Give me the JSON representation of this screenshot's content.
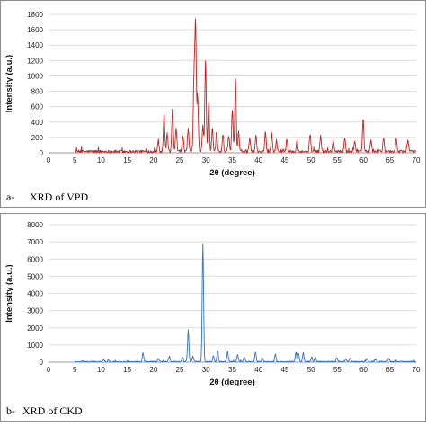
{
  "panels": [
    {
      "caption_prefix": "a-",
      "caption": "XRD of VPD",
      "chart_data": {
        "type": "line",
        "xlabel": "2θ (degree)",
        "ylabel": "Intensity (a.u.)",
        "xlim": [
          0,
          70
        ],
        "ylim": [
          0,
          1800
        ],
        "xticks": [
          0,
          5,
          10,
          15,
          20,
          25,
          30,
          35,
          40,
          45,
          50,
          55,
          60,
          65,
          70
        ],
        "yticks": [
          0,
          200,
          400,
          600,
          800,
          1000,
          1200,
          1400,
          1600,
          1800
        ],
        "grid": "horizontal",
        "color": "#c8201e",
        "x_range": [
          5,
          70
        ],
        "noise_level": 35,
        "peaks": [
          {
            "x": 20.9,
            "y": 150
          },
          {
            "x": 22.0,
            "y": 480
          },
          {
            "x": 22.6,
            "y": 230
          },
          {
            "x": 23.6,
            "y": 560
          },
          {
            "x": 24.3,
            "y": 300
          },
          {
            "x": 25.6,
            "y": 200
          },
          {
            "x": 26.6,
            "y": 290
          },
          {
            "x": 27.7,
            "y": 1000
          },
          {
            "x": 28.0,
            "y": 1680
          },
          {
            "x": 28.4,
            "y": 700
          },
          {
            "x": 29.4,
            "y": 350
          },
          {
            "x": 29.9,
            "y": 1180
          },
          {
            "x": 30.5,
            "y": 640
          },
          {
            "x": 31.2,
            "y": 300
          },
          {
            "x": 32.0,
            "y": 250
          },
          {
            "x": 33.2,
            "y": 220
          },
          {
            "x": 34.3,
            "y": 200
          },
          {
            "x": 35.0,
            "y": 540
          },
          {
            "x": 35.6,
            "y": 950
          },
          {
            "x": 36.2,
            "y": 250
          },
          {
            "x": 38.3,
            "y": 180
          },
          {
            "x": 39.5,
            "y": 200
          },
          {
            "x": 41.3,
            "y": 260
          },
          {
            "x": 42.5,
            "y": 230
          },
          {
            "x": 43.4,
            "y": 150
          },
          {
            "x": 45.4,
            "y": 150
          },
          {
            "x": 47.3,
            "y": 150
          },
          {
            "x": 49.8,
            "y": 220
          },
          {
            "x": 51.8,
            "y": 200
          },
          {
            "x": 54.2,
            "y": 150
          },
          {
            "x": 56.4,
            "y": 180
          },
          {
            "x": 58.3,
            "y": 140
          },
          {
            "x": 59.9,
            "y": 420
          },
          {
            "x": 61.4,
            "y": 150
          },
          {
            "x": 63.8,
            "y": 180
          },
          {
            "x": 66.2,
            "y": 160
          },
          {
            "x": 68.4,
            "y": 150
          }
        ]
      }
    },
    {
      "caption_prefix": "b-",
      "caption": "XRD of CKD",
      "chart_data": {
        "type": "line",
        "xlabel": "2θ (degree)",
        "ylabel": "Intensity (a.u.)",
        "xlim": [
          0,
          70
        ],
        "ylim": [
          0,
          8000
        ],
        "xticks": [
          0,
          5,
          10,
          15,
          20,
          25,
          30,
          35,
          40,
          45,
          50,
          55,
          60,
          65,
          70
        ],
        "yticks": [
          0,
          1000,
          2000,
          3000,
          4000,
          5000,
          6000,
          7000,
          8000
        ],
        "grid": "horizontal",
        "color": "#2f72d1",
        "x_range": [
          5,
          70
        ],
        "noise_level": 60,
        "peaks": [
          {
            "x": 10.5,
            "y": 130
          },
          {
            "x": 11.4,
            "y": 110
          },
          {
            "x": 18.0,
            "y": 500
          },
          {
            "x": 20.9,
            "y": 180
          },
          {
            "x": 23.0,
            "y": 320
          },
          {
            "x": 25.5,
            "y": 250
          },
          {
            "x": 26.6,
            "y": 1850
          },
          {
            "x": 27.5,
            "y": 300
          },
          {
            "x": 29.4,
            "y": 6850
          },
          {
            "x": 31.4,
            "y": 350
          },
          {
            "x": 32.2,
            "y": 650
          },
          {
            "x": 34.1,
            "y": 600
          },
          {
            "x": 36.0,
            "y": 420
          },
          {
            "x": 37.3,
            "y": 250
          },
          {
            "x": 39.4,
            "y": 560
          },
          {
            "x": 40.7,
            "y": 220
          },
          {
            "x": 43.2,
            "y": 450
          },
          {
            "x": 47.1,
            "y": 550
          },
          {
            "x": 47.6,
            "y": 480
          },
          {
            "x": 48.5,
            "y": 520
          },
          {
            "x": 50.1,
            "y": 260
          },
          {
            "x": 50.8,
            "y": 250
          },
          {
            "x": 54.9,
            "y": 230
          },
          {
            "x": 56.6,
            "y": 180
          },
          {
            "x": 57.4,
            "y": 200
          },
          {
            "x": 60.6,
            "y": 180
          },
          {
            "x": 62.3,
            "y": 150
          },
          {
            "x": 64.7,
            "y": 180
          }
        ]
      }
    }
  ]
}
